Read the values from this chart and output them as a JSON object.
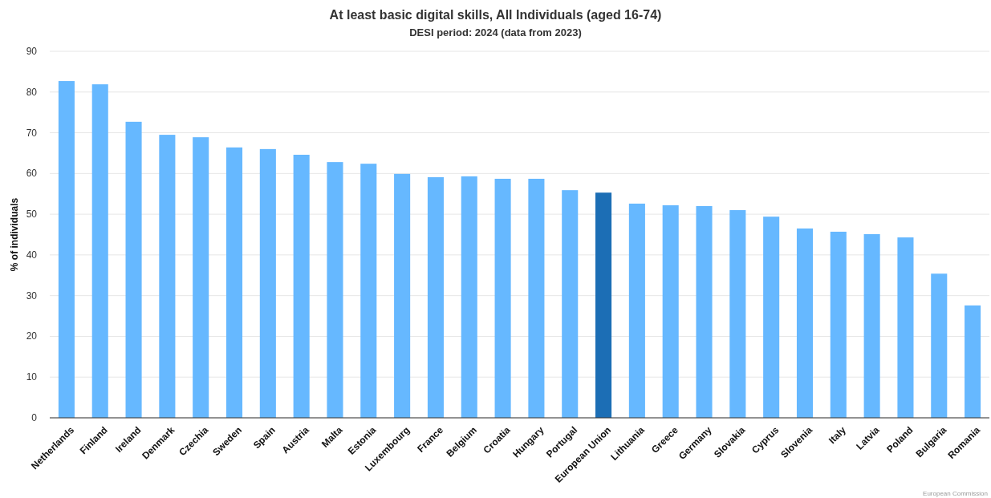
{
  "chart_data": {
    "type": "bar",
    "title": "At least basic digital skills, All Individuals (aged 16-74)",
    "subtitle": "DESI period: 2024 (data from 2023)",
    "ylabel": "% of individuals",
    "categories": [
      "Netherlands",
      "Finland",
      "Ireland",
      "Denmark",
      "Czechia",
      "Sweden",
      "Spain",
      "Austria",
      "Malta",
      "Estonia",
      "Luxembourg",
      "France",
      "Belgium",
      "Croatia",
      "Hungary",
      "Portugal",
      "European Union",
      "Lithuania",
      "Greece",
      "Germany",
      "Slovakia",
      "Cyprus",
      "Slovenia",
      "Italy",
      "Latvia",
      "Poland",
      "Bulgaria",
      "Romania"
    ],
    "values": [
      82.7,
      81.9,
      72.7,
      69.5,
      68.9,
      66.4,
      66.0,
      64.6,
      62.8,
      62.4,
      59.9,
      59.1,
      59.3,
      58.7,
      58.7,
      55.9,
      55.3,
      52.6,
      52.2,
      52.0,
      51.0,
      49.4,
      46.5,
      45.7,
      45.1,
      44.3,
      35.4,
      27.6
    ],
    "colors": [
      "#66b8ff",
      "#66b8ff",
      "#66b8ff",
      "#66b8ff",
      "#66b8ff",
      "#66b8ff",
      "#66b8ff",
      "#66b8ff",
      "#66b8ff",
      "#66b8ff",
      "#66b8ff",
      "#66b8ff",
      "#66b8ff",
      "#66b8ff",
      "#66b8ff",
      "#66b8ff",
      "#1c6eb5",
      "#66b8ff",
      "#66b8ff",
      "#66b8ff",
      "#66b8ff",
      "#66b8ff",
      "#66b8ff",
      "#66b8ff",
      "#66b8ff",
      "#66b8ff",
      "#66b8ff",
      "#66b8ff"
    ],
    "ylim": [
      0,
      90
    ],
    "yticks": [
      0,
      10,
      20,
      30,
      40,
      50,
      60,
      70,
      80,
      90
    ],
    "grid": "y",
    "annotations": [
      "European Commission"
    ]
  }
}
